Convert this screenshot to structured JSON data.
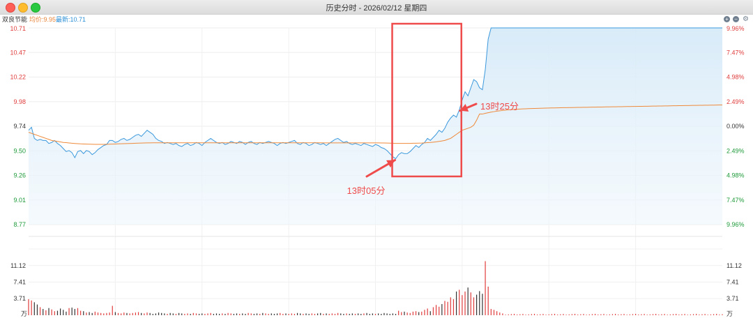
{
  "window": {
    "title": "历史分时 - 2026/02/12 星期四"
  },
  "info": {
    "name": "双良节能",
    "avg_label": "均价:9.95",
    "last_label": "最新:10.71"
  },
  "colors": {
    "price": "#3a98dc",
    "avg": "#ef8a3a",
    "up": "#e03c3c",
    "down": "#1e9a3a",
    "annot": "#ef4b4b",
    "flat": "#333333"
  },
  "chart_data": {
    "type": "line",
    "price_ticks": [
      "10.71",
      "10.47",
      "10.22",
      "9.98",
      "9.74",
      "9.50",
      "9.26",
      "9.01",
      "8.77"
    ],
    "pct_ticks": [
      "9.96%",
      "7.47%",
      "4.98%",
      "2.49%",
      "0.00%",
      "2.49%",
      "4.98%",
      "7.47%",
      "9.96%"
    ],
    "price_range": [
      8.77,
      10.71
    ],
    "prev_close": 9.74,
    "volume_ticks": [
      "11.12",
      "7.41",
      "3.71"
    ],
    "volume_unit": "万",
    "volume_range": [
      0,
      14.83
    ],
    "price_series": [
      9.7,
      9.73,
      9.62,
      9.6,
      9.61,
      9.6,
      9.6,
      9.57,
      9.58,
      9.6,
      9.57,
      9.55,
      9.52,
      9.49,
      9.5,
      9.48,
      9.43,
      9.49,
      9.5,
      9.47,
      9.5,
      9.49,
      9.46,
      9.48,
      9.51,
      9.53,
      9.55,
      9.56,
      9.6,
      9.6,
      9.58,
      9.59,
      9.61,
      9.62,
      9.6,
      9.61,
      9.63,
      9.65,
      9.66,
      9.64,
      9.67,
      9.7,
      9.68,
      9.66,
      9.62,
      9.6,
      9.59,
      9.57,
      9.58,
      9.57,
      9.56,
      9.57,
      9.55,
      9.54,
      9.56,
      9.57,
      9.55,
      9.56,
      9.58,
      9.57,
      9.55,
      9.58,
      9.6,
      9.62,
      9.6,
      9.58,
      9.57,
      9.58,
      9.56,
      9.57,
      9.59,
      9.58,
      9.57,
      9.59,
      9.58,
      9.56,
      9.58,
      9.59,
      9.57,
      9.56,
      9.58,
      9.57,
      9.58,
      9.59,
      9.58,
      9.57,
      9.55,
      9.57,
      9.58,
      9.57,
      9.58,
      9.59,
      9.6,
      9.57,
      9.56,
      9.58,
      9.57,
      9.55,
      9.56,
      9.58,
      9.57,
      9.56,
      9.57,
      9.55,
      9.57,
      9.59,
      9.61,
      9.62,
      9.6,
      9.58,
      9.59,
      9.57,
      9.56,
      9.57,
      9.56,
      9.55,
      9.57,
      9.56,
      9.55,
      9.54,
      9.56,
      9.55,
      9.53,
      9.52,
      9.5,
      9.47,
      9.44,
      9.42,
      9.46,
      9.48,
      9.47,
      9.47,
      9.49,
      9.52,
      9.55,
      9.53,
      9.56,
      9.58,
      9.62,
      9.6,
      9.63,
      9.66,
      9.7,
      9.68,
      9.72,
      9.78,
      9.82,
      9.85,
      9.83,
      9.9,
      10.0,
      10.08,
      10.04,
      10.12,
      10.2,
      10.18,
      10.12,
      10.1,
      10.3,
      10.6
    ],
    "avg_series": [
      9.68,
      9.67,
      9.66,
      9.65,
      9.64,
      9.63,
      9.62,
      9.61,
      9.6,
      9.595,
      9.59,
      9.585,
      9.58,
      9.578,
      9.575,
      9.572,
      9.57,
      9.568,
      9.566,
      9.565,
      9.564,
      9.563,
      9.562,
      9.561,
      9.561,
      9.561,
      9.561,
      9.562,
      9.563,
      9.564,
      9.565,
      9.566,
      9.567,
      9.568,
      9.569,
      9.57,
      9.571,
      9.572,
      9.573,
      9.574,
      9.575,
      9.576,
      9.576,
      9.577,
      9.577,
      9.577,
      9.577,
      9.577,
      9.577,
      9.577,
      9.577,
      9.577,
      9.577,
      9.577,
      9.577,
      9.577,
      9.577,
      9.577,
      9.577,
      9.577,
      9.577,
      9.577,
      9.577,
      9.577,
      9.577,
      9.577,
      9.577,
      9.577,
      9.577,
      9.577,
      9.577,
      9.577,
      9.577,
      9.577,
      9.577,
      9.577,
      9.577,
      9.577,
      9.577,
      9.577,
      9.577,
      9.577,
      9.577,
      9.577,
      9.577,
      9.577,
      9.577,
      9.577,
      9.577,
      9.577,
      9.577,
      9.577,
      9.577,
      9.577,
      9.577,
      9.577,
      9.577,
      9.577,
      9.577,
      9.577,
      9.577,
      9.577,
      9.576,
      9.576,
      9.576,
      9.576,
      9.576,
      9.576,
      9.576,
      9.576,
      9.576,
      9.576,
      9.576,
      9.576,
      9.576,
      9.576,
      9.576,
      9.576,
      9.576,
      9.576,
      9.576,
      9.576,
      9.575,
      9.575,
      9.574,
      9.573,
      9.572,
      9.571,
      9.571,
      9.571,
      9.571,
      9.571,
      9.571,
      9.572,
      9.572,
      9.573,
      9.574,
      9.576,
      9.578,
      9.58,
      9.583,
      9.586,
      9.59,
      9.595,
      9.6,
      9.61,
      9.62,
      9.64,
      9.66,
      9.68,
      9.7,
      9.71,
      9.72,
      9.73,
      9.75,
      9.8,
      9.86
    ],
    "avg_tail_start": 9.86,
    "avg_tail_end": 9.95,
    "volume_values": [
      3.6,
      3.3,
      2.9,
      2.4,
      1.8,
      1.4,
      1.1,
      1.6,
      1.3,
      0.9,
      1.0,
      1.5,
      1.2,
      0.8,
      1.6,
      1.7,
      1.4,
      1.6,
      1.0,
      0.9,
      0.6,
      0.7,
      0.5,
      0.8,
      0.6,
      0.5,
      0.4,
      0.5,
      0.6,
      2.1,
      0.7,
      0.5,
      0.4,
      0.6,
      0.5,
      0.4,
      0.5,
      0.6,
      0.7,
      0.5,
      0.4,
      0.6,
      0.5,
      0.3,
      0.4,
      0.6,
      0.5,
      0.4,
      0.3,
      0.5,
      0.4,
      0.3,
      0.5,
      0.4,
      0.3,
      0.4,
      0.3,
      0.5,
      0.4,
      0.3,
      0.4,
      0.3,
      0.4,
      0.5,
      0.3,
      0.4,
      0.3,
      0.4,
      0.3,
      0.5,
      0.4,
      0.3,
      0.4,
      0.3,
      0.4,
      0.3,
      0.5,
      0.4,
      0.3,
      0.4,
      0.3,
      0.5,
      0.4,
      0.3,
      0.4,
      0.3,
      0.4,
      0.5,
      0.3,
      0.4,
      0.3,
      0.4,
      0.3,
      0.5,
      0.4,
      0.3,
      0.4,
      0.3,
      0.4,
      0.3,
      0.4,
      0.5,
      0.3,
      0.4,
      0.3,
      0.4,
      0.3,
      0.5,
      0.4,
      0.3,
      0.4,
      0.3,
      0.4,
      0.3,
      0.4,
      0.3,
      0.4,
      0.5,
      0.3,
      0.4,
      0.3,
      0.4,
      0.3,
      0.5,
      0.4,
      0.3,
      0.4,
      0.3,
      1.0,
      0.7,
      0.8,
      0.6,
      0.5,
      0.8,
      0.9,
      0.7,
      0.8,
      1.2,
      1.5,
      0.9,
      1.8,
      2.3,
      1.9,
      2.5,
      3.2,
      3.0,
      4.0,
      3.6,
      5.3,
      5.7,
      4.5,
      5.3,
      6.2,
      5.1,
      4.0,
      4.6,
      5.4,
      4.8,
      12.1,
      6.4
    ],
    "volume_tail": [
      1.4,
      1.2,
      0.9,
      0.6,
      0.4
    ],
    "annotations": [
      {
        "text": "13时05分",
        "x_index": 127
      },
      {
        "text": "13时25分",
        "x_index": 149
      }
    ]
  }
}
